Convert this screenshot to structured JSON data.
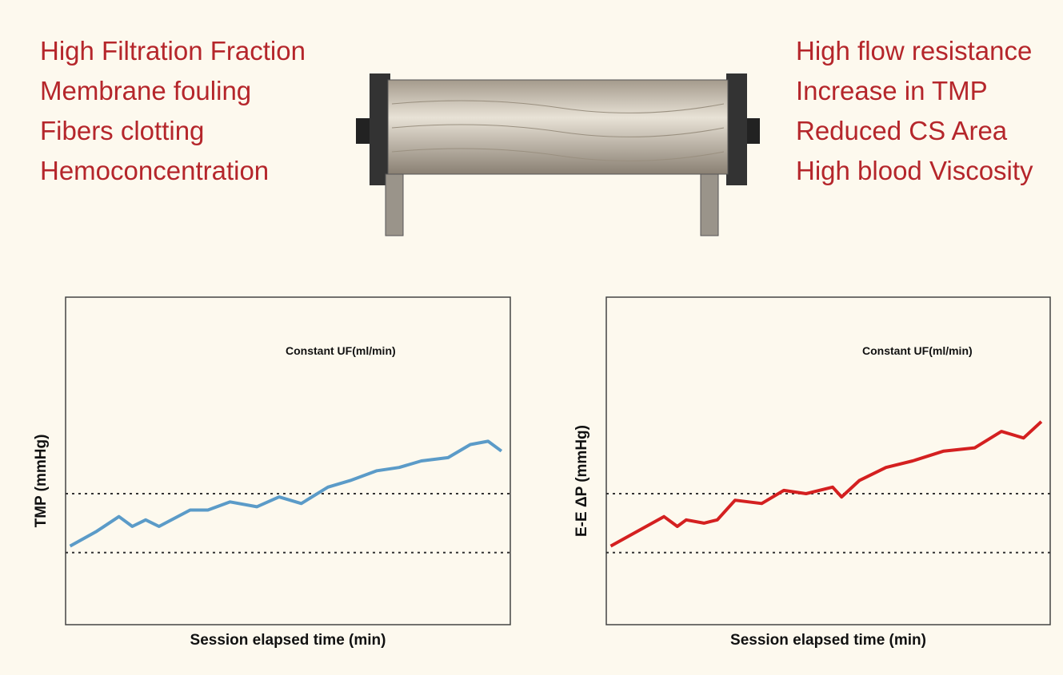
{
  "left_list": [
    "High Filtration Fraction",
    "Membrane fouling",
    "Fibers clotting",
    "Hemoconcentration"
  ],
  "right_list": [
    "High flow resistance",
    "Increase in TMP",
    "Reduced CS Area",
    "High blood Viscosity"
  ],
  "chart_data": [
    {
      "type": "line",
      "annotation": "Constant UF(ml/min)",
      "x_label": "Session elapsed time (min)",
      "y_label": "TMP (mmHg)",
      "xlim": [
        0,
        100
      ],
      "ylim": [
        0,
        100
      ],
      "reference_lines": [
        40,
        22
      ],
      "x": [
        1,
        7,
        12,
        15,
        18,
        21,
        28,
        32,
        37,
        43,
        48,
        53,
        59,
        64,
        70,
        75,
        80,
        86,
        91,
        95,
        98
      ],
      "series": [
        {
          "color": "#5b9bc8",
          "values": [
            24,
            28.5,
            33,
            30,
            32,
            30,
            35,
            35,
            37.5,
            36,
            39,
            37,
            42,
            44,
            47,
            48,
            50,
            51,
            55,
            56,
            53
          ]
        }
      ]
    },
    {
      "type": "line",
      "annotation": "Constant UF(ml/min)",
      "x_label": "Session elapsed time (min)",
      "y_label": "E-E ΔP (mmHg)",
      "xlim": [
        0,
        100
      ],
      "ylim": [
        0,
        100
      ],
      "reference_lines": [
        40,
        22
      ],
      "x": [
        1,
        5,
        13,
        16,
        18,
        22,
        25,
        29,
        35,
        40,
        45,
        51,
        53,
        57,
        63,
        69,
        76,
        83,
        89,
        94,
        98
      ],
      "series": [
        {
          "color": "#d42020",
          "values": [
            24,
            27,
            33,
            30,
            32,
            31,
            32,
            38,
            37,
            41,
            40,
            42,
            39,
            44,
            48,
            50,
            53,
            54,
            59,
            57,
            62
          ]
        }
      ]
    }
  ]
}
